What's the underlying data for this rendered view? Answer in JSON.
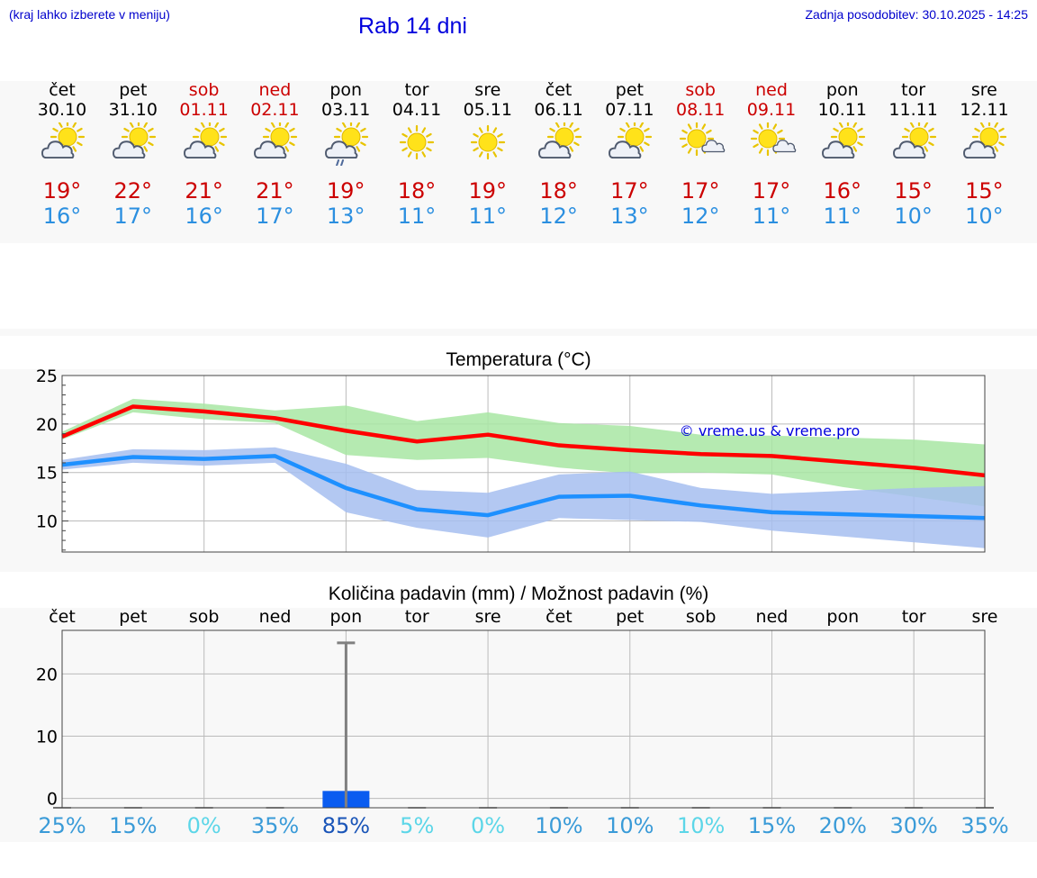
{
  "header": {
    "location_hint": "(kraj lahko izberete v meniju)",
    "title": "Rab 14 dni",
    "updated": "Zadnja posodobitev: 30.10.2025 - 14:25"
  },
  "colors": {
    "weekday": "#000000",
    "weekend": "#cc0000",
    "temp_max": "#ff0000",
    "temp_min": "#1e90ff",
    "max_band": "#a8e6a3",
    "min_band": "#a6bef0",
    "rain_bar": "#0a5cf0",
    "link": "#0000dd"
  },
  "days": [
    {
      "name": "čet",
      "date": "30.10",
      "weekend": false,
      "icon": "partly-cloudy-icon",
      "max": "19°",
      "min": "16°"
    },
    {
      "name": "pet",
      "date": "31.10",
      "weekend": false,
      "icon": "partly-cloudy-icon",
      "max": "22°",
      "min": "17°"
    },
    {
      "name": "sob",
      "date": "01.11",
      "weekend": true,
      "icon": "partly-cloudy-icon",
      "max": "21°",
      "min": "16°"
    },
    {
      "name": "ned",
      "date": "02.11",
      "weekend": true,
      "icon": "partly-cloudy-icon",
      "max": "21°",
      "min": "17°"
    },
    {
      "name": "pon",
      "date": "03.11",
      "weekend": false,
      "icon": "partly-cloudy-rain-icon",
      "max": "19°",
      "min": "13°"
    },
    {
      "name": "tor",
      "date": "04.11",
      "weekend": false,
      "icon": "sun-icon",
      "max": "18°",
      "min": "11°"
    },
    {
      "name": "sre",
      "date": "05.11",
      "weekend": false,
      "icon": "sun-icon",
      "max": "19°",
      "min": "11°"
    },
    {
      "name": "čet",
      "date": "06.11",
      "weekend": false,
      "icon": "partly-cloudy-icon",
      "max": "18°",
      "min": "12°"
    },
    {
      "name": "pet",
      "date": "07.11",
      "weekend": false,
      "icon": "partly-cloudy-icon",
      "max": "17°",
      "min": "13°"
    },
    {
      "name": "sob",
      "date": "08.11",
      "weekend": true,
      "icon": "sun-small-cloud-icon",
      "max": "17°",
      "min": "12°"
    },
    {
      "name": "ned",
      "date": "09.11",
      "weekend": true,
      "icon": "sun-small-cloud-icon",
      "max": "17°",
      "min": "11°"
    },
    {
      "name": "pon",
      "date": "10.11",
      "weekend": false,
      "icon": "partly-cloudy-icon",
      "max": "16°",
      "min": "11°"
    },
    {
      "name": "tor",
      "date": "11.11",
      "weekend": false,
      "icon": "partly-cloudy-icon",
      "max": "15°",
      "min": "10°"
    },
    {
      "name": "sre",
      "date": "12.11",
      "weekend": false,
      "icon": "partly-cloudy-icon",
      "max": "15°",
      "min": "10°"
    }
  ],
  "chart_data": [
    {
      "type": "line",
      "title": "Temperatura (°C)",
      "watermark": "© vreme.us & vreme.pro",
      "x": [
        0,
        1,
        2,
        3,
        4,
        5,
        6,
        7,
        8,
        9,
        10,
        11,
        12,
        13
      ],
      "ylim": [
        6.8,
        25
      ],
      "yticks": [
        10,
        15,
        20,
        25
      ],
      "grid": true,
      "series": [
        {
          "name": "max",
          "values": [
            18.7,
            21.8,
            21.3,
            20.6,
            19.3,
            18.2,
            18.9,
            17.8,
            17.3,
            16.9,
            16.7,
            16.1,
            15.5,
            14.7
          ]
        },
        {
          "name": "min",
          "values": [
            15.8,
            16.6,
            16.4,
            16.7,
            13.4,
            11.2,
            10.6,
            12.5,
            12.6,
            11.6,
            10.9,
            10.7,
            10.5,
            10.3
          ]
        }
      ],
      "bands": [
        {
          "name": "max_range",
          "low": [
            18.4,
            21.2,
            20.5,
            20.1,
            16.8,
            16.3,
            16.5,
            15.5,
            14.9,
            15.0,
            14.8,
            13.5,
            12.5,
            11.5
          ],
          "high": [
            19.2,
            22.6,
            22.1,
            21.4,
            21.9,
            20.3,
            21.2,
            20.1,
            19.8,
            18.9,
            18.8,
            18.6,
            18.4,
            17.9
          ]
        },
        {
          "name": "min_range",
          "low": [
            15.3,
            16.0,
            15.7,
            16.0,
            10.9,
            9.3,
            8.3,
            10.3,
            10.1,
            9.9,
            9.0,
            8.4,
            7.8,
            7.2
          ],
          "high": [
            16.3,
            17.4,
            17.3,
            17.6,
            15.9,
            13.2,
            12.9,
            14.8,
            15.1,
            13.4,
            12.8,
            13.1,
            13.4,
            13.6
          ]
        }
      ]
    },
    {
      "type": "bar",
      "title": "Količina padavin (mm) / Možnost padavin (%)",
      "categories": [
        "čet",
        "pet",
        "sob",
        "ned",
        "pon",
        "tor",
        "sre",
        "čet",
        "pet",
        "sob",
        "ned",
        "pon",
        "tor",
        "sre"
      ],
      "ylim": [
        -1.5,
        27
      ],
      "yticks": [
        0,
        10,
        20
      ],
      "grid": true,
      "series": [
        {
          "name": "amount_mm",
          "values": [
            0,
            0,
            0,
            0,
            1.2,
            0,
            0,
            0,
            0,
            0,
            0,
            0,
            0,
            0
          ]
        },
        {
          "name": "max_mm",
          "values": [
            0,
            0,
            0,
            0,
            25,
            0,
            0,
            0,
            0,
            0,
            0,
            0,
            0,
            0
          ]
        }
      ],
      "probability": [
        "25%",
        "15%",
        "0%",
        "35%",
        "85%",
        "5%",
        "0%",
        "10%",
        "10%",
        "10%",
        "15%",
        "20%",
        "30%",
        "35%"
      ],
      "probability_colors": [
        "#3a9bd8",
        "#3a9bd8",
        "#5cd6e8",
        "#3a9bd8",
        "#1a55b8",
        "#5cd6e8",
        "#5cd6e8",
        "#3a9bd8",
        "#3a9bd8",
        "#5cd6e8",
        "#3a9bd8",
        "#3a9bd8",
        "#3a9bd8",
        "#3a9bd8"
      ]
    }
  ]
}
